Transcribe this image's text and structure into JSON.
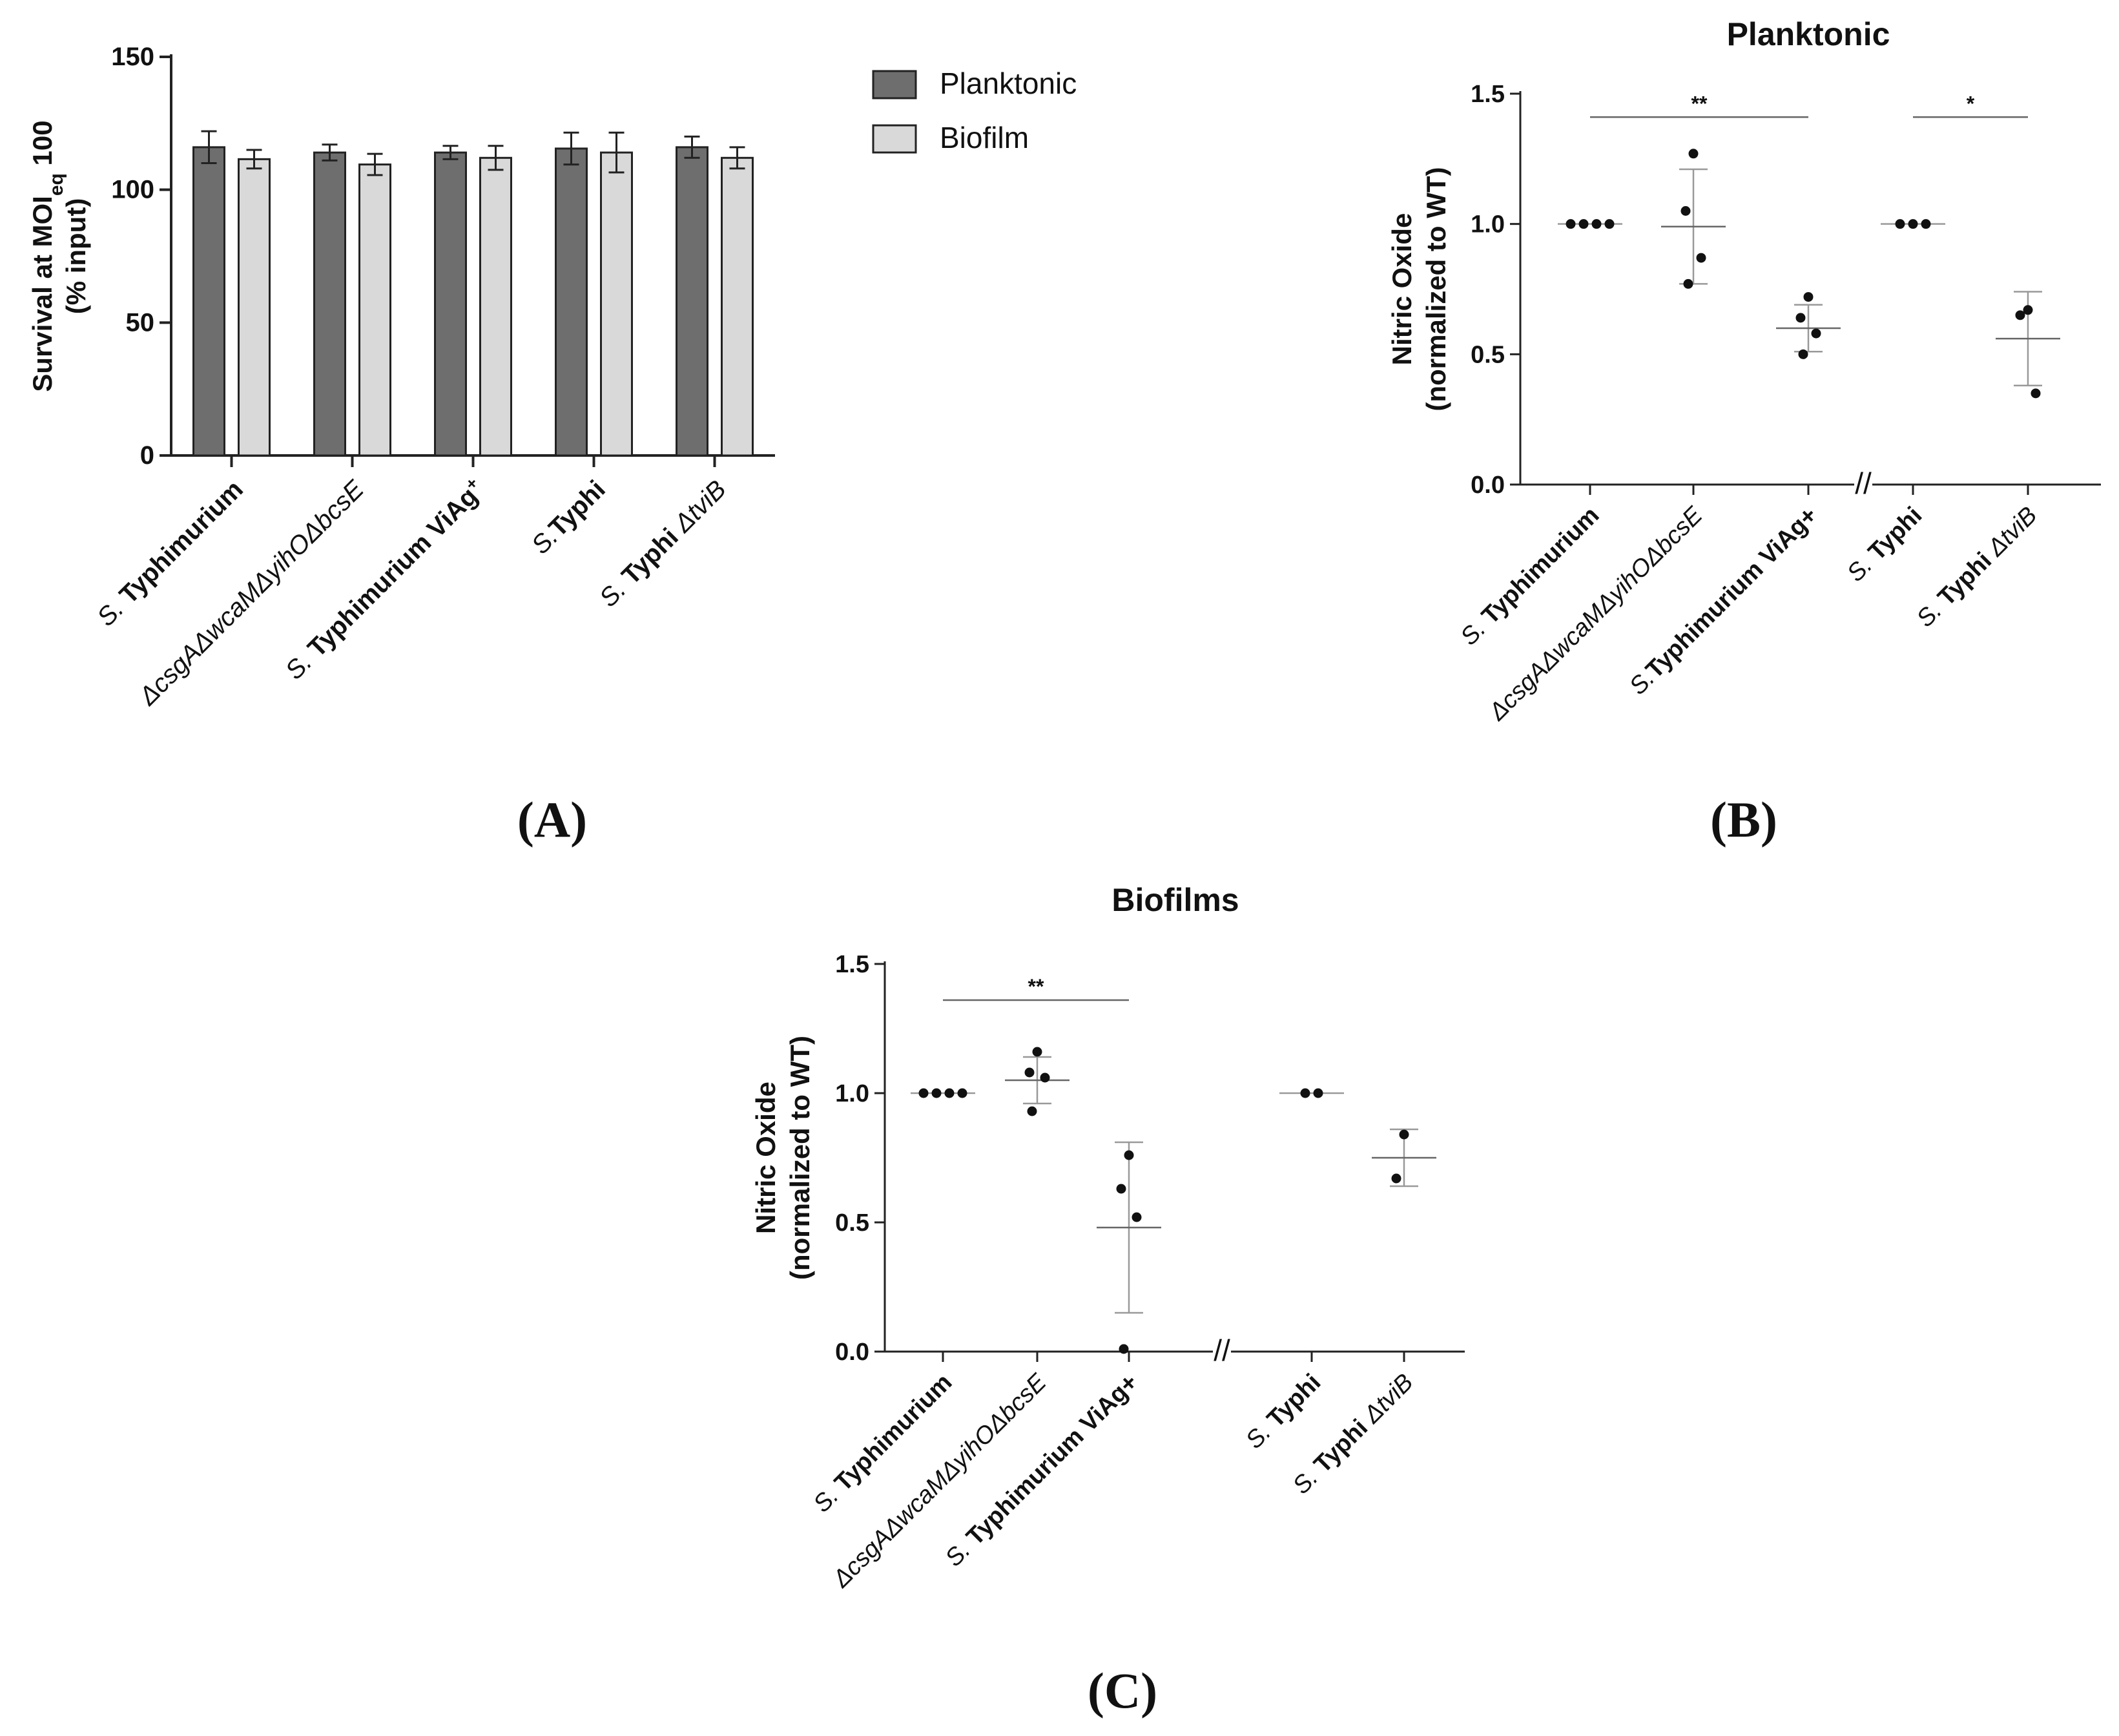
{
  "colors": {
    "planktonic_bar": "#6e6e6e",
    "biofilm_bar": "#d9d9d9",
    "axis": "#222222",
    "sd": "#999999"
  },
  "panels": {
    "A": {
      "label": "(A)"
    },
    "B": {
      "label": "(B)"
    },
    "C": {
      "label": "(C)"
    }
  },
  "chart_data": [
    {
      "id": "A",
      "type": "bar",
      "title": "",
      "ylabel": "Survival at MOIeq 100 (% input)",
      "ylabel_line1_prefix": "Survival at MOI",
      "ylabel_line1_sub": "eq",
      "ylabel_line1_suffix": " 100",
      "ylabel_line2": "(% input)",
      "ylim": [
        0,
        150
      ],
      "yticks": [
        0,
        50,
        100,
        150
      ],
      "legend_position": "top-right",
      "categories": [
        {
          "parts": [
            {
              "t": "S. ",
              "s": "italic"
            },
            {
              "t": "Typhimurium",
              "s": "bold"
            }
          ]
        },
        {
          "parts": [
            {
              "t": "ΔcsgAΔwcaMΔyihOΔbcsE",
              "s": "italic"
            }
          ]
        },
        {
          "parts": [
            {
              "t": "S. ",
              "s": "italic"
            },
            {
              "t": "Typhimurium ViAg",
              "s": "bold"
            },
            {
              "t": "+",
              "s": "sup"
            }
          ]
        },
        {
          "parts": [
            {
              "t": "S.",
              "s": "italic"
            },
            {
              "t": "Typhi",
              "s": "bold"
            }
          ]
        },
        {
          "parts": [
            {
              "t": "S. ",
              "s": "italic"
            },
            {
              "t": "Typhi ",
              "s": "bold"
            },
            {
              "t": "ΔtviB",
              "s": "italic"
            }
          ]
        }
      ],
      "series": [
        {
          "name": "Planktonic",
          "values": [
            116,
            114,
            114,
            115.5,
            116
          ],
          "errors": [
            6,
            3,
            2.5,
            6,
            4
          ]
        },
        {
          "name": "Biofilm",
          "values": [
            111.5,
            109.5,
            112,
            114,
            112
          ],
          "errors": [
            3.5,
            4,
            4.5,
            7.5,
            4
          ]
        }
      ]
    },
    {
      "id": "B",
      "type": "scatter",
      "title": "Planktonic",
      "ylabel": "Nitric Oxide (normalized to WT)",
      "ylabel_line1": "Nitric Oxide",
      "ylabel_line2": "(normalized to WT)",
      "ylim": [
        0,
        1.5
      ],
      "yticks": [
        "0.0",
        "0.5",
        "1.0",
        "1.5"
      ],
      "axis_break": "//",
      "categories": [
        {
          "parts": [
            {
              "t": "S. ",
              "s": "italic"
            },
            {
              "t": "Typhimurium",
              "s": "bold"
            }
          ]
        },
        {
          "parts": [
            {
              "t": "ΔcsgAΔwcaMΔyihOΔbcsE",
              "s": "italic"
            }
          ]
        },
        {
          "parts": [
            {
              "t": "S.",
              "s": "italic"
            },
            {
              "t": "Typhimurium ViAg+",
              "s": "bold"
            }
          ]
        },
        {
          "parts": [
            {
              "t": "S. ",
              "s": "italic"
            },
            {
              "t": "Typhi",
              "s": "bold"
            }
          ]
        },
        {
          "parts": [
            {
              "t": "S. ",
              "s": "italic"
            },
            {
              "t": "Typhi ",
              "s": "bold"
            },
            {
              "t": "ΔtviB",
              "s": "italic"
            }
          ]
        }
      ],
      "groups": [
        {
          "points": [
            1.0,
            1.0,
            1.0,
            1.0
          ],
          "mean": 1.0,
          "sd": 0
        },
        {
          "points": [
            1.27,
            1.05,
            0.87,
            0.77
          ],
          "mean": 0.99,
          "sd": 0.22
        },
        {
          "points": [
            0.72,
            0.64,
            0.58,
            0.5
          ],
          "mean": 0.6,
          "sd": 0.09
        },
        {
          "points": [
            1.0,
            1.0,
            1.0
          ],
          "mean": 1.0,
          "sd": 0
        },
        {
          "points": [
            0.67,
            0.65,
            0.35
          ],
          "mean": 0.56,
          "sd": 0.18
        }
      ],
      "significance": [
        {
          "from": 0,
          "to": 2,
          "label": "**",
          "y": 1.41
        },
        {
          "from": 3,
          "to": 4,
          "label": "*",
          "y": 1.41
        }
      ]
    },
    {
      "id": "C",
      "type": "scatter",
      "title": "Biofilms",
      "ylabel": "Nitric Oxide (normalized to WT)",
      "ylabel_line1": "Nitric Oxide",
      "ylabel_line2": "(normalized to WT)",
      "ylim": [
        0,
        1.5
      ],
      "yticks": [
        "0.0",
        "0.5",
        "1.0",
        "1.5"
      ],
      "axis_break": "//",
      "categories": [
        {
          "parts": [
            {
              "t": "S. ",
              "s": "italic"
            },
            {
              "t": "Typhimurium",
              "s": "bold"
            }
          ]
        },
        {
          "parts": [
            {
              "t": "ΔcsgAΔwcaMΔyihOΔbcsE",
              "s": "italic"
            }
          ]
        },
        {
          "parts": [
            {
              "t": "S. ",
              "s": "italic"
            },
            {
              "t": "Typhimurium ViAg+",
              "s": "bold"
            }
          ]
        },
        {
          "parts": [
            {
              "t": "S. ",
              "s": "italic"
            },
            {
              "t": "Typhi",
              "s": "bold"
            }
          ]
        },
        {
          "parts": [
            {
              "t": "S. ",
              "s": "italic"
            },
            {
              "t": "Typhi ",
              "s": "bold"
            },
            {
              "t": "ΔtviB",
              "s": "italic"
            }
          ]
        }
      ],
      "groups": [
        {
          "points": [
            1.0,
            1.0,
            1.0,
            1.0
          ],
          "mean": 1.0,
          "sd": 0
        },
        {
          "points": [
            1.16,
            1.08,
            1.06,
            0.93
          ],
          "mean": 1.05,
          "sd": 0.09
        },
        {
          "points": [
            0.76,
            0.63,
            0.52,
            0.01
          ],
          "mean": 0.48,
          "sd": 0.33
        },
        {
          "points": [
            1.0,
            1.0
          ],
          "mean": 1.0,
          "sd": 0
        },
        {
          "points": [
            0.84,
            0.67
          ],
          "mean": 0.75,
          "sd": 0.11
        }
      ],
      "significance": [
        {
          "from": 0,
          "to": 2,
          "label": "**",
          "y": 1.36
        }
      ]
    }
  ]
}
